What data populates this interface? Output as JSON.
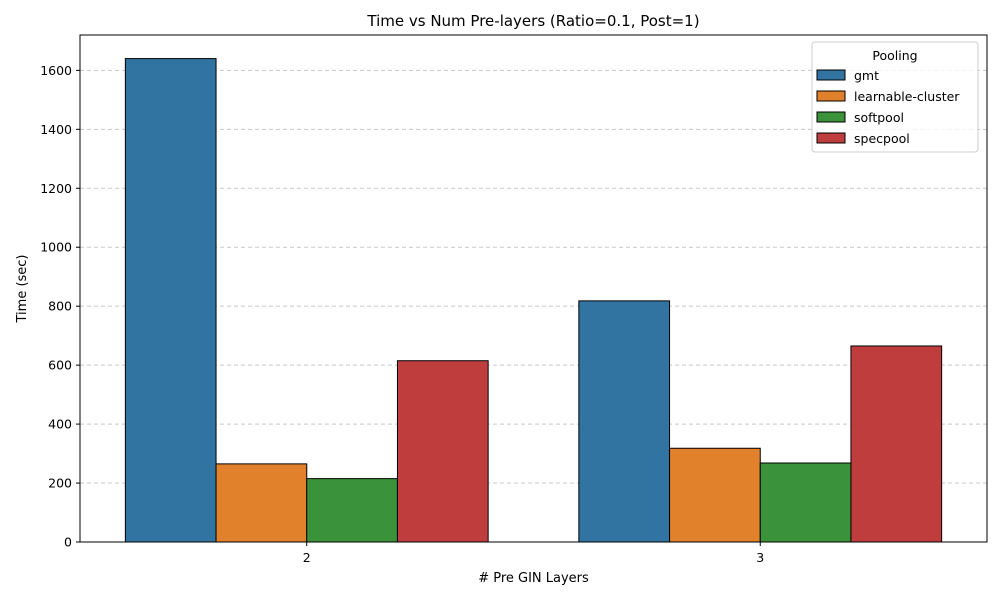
{
  "chart_data": {
    "type": "bar",
    "title": "Time vs Num Pre-layers (Ratio=0.1, Post=1)",
    "xlabel": "# Pre GIN Layers",
    "ylabel": "Time (sec)",
    "categories": [
      "2",
      "3"
    ],
    "ylim": [
      0,
      1720
    ],
    "yticks": [
      0,
      200,
      400,
      600,
      800,
      1000,
      1200,
      1400,
      1600
    ],
    "grid": "y-dashed",
    "legend": {
      "title": "Pooling",
      "placement": "top-right"
    },
    "series": [
      {
        "name": "gmt",
        "color": "#3274a1",
        "values": [
          1640,
          818
        ]
      },
      {
        "name": "learnable-cluster",
        "color": "#e1812c",
        "values": [
          265,
          318
        ]
      },
      {
        "name": "softpool",
        "color": "#3a923a",
        "values": [
          215,
          268
        ]
      },
      {
        "name": "specpool",
        "color": "#c03d3e",
        "values": [
          615,
          665
        ]
      }
    ]
  }
}
